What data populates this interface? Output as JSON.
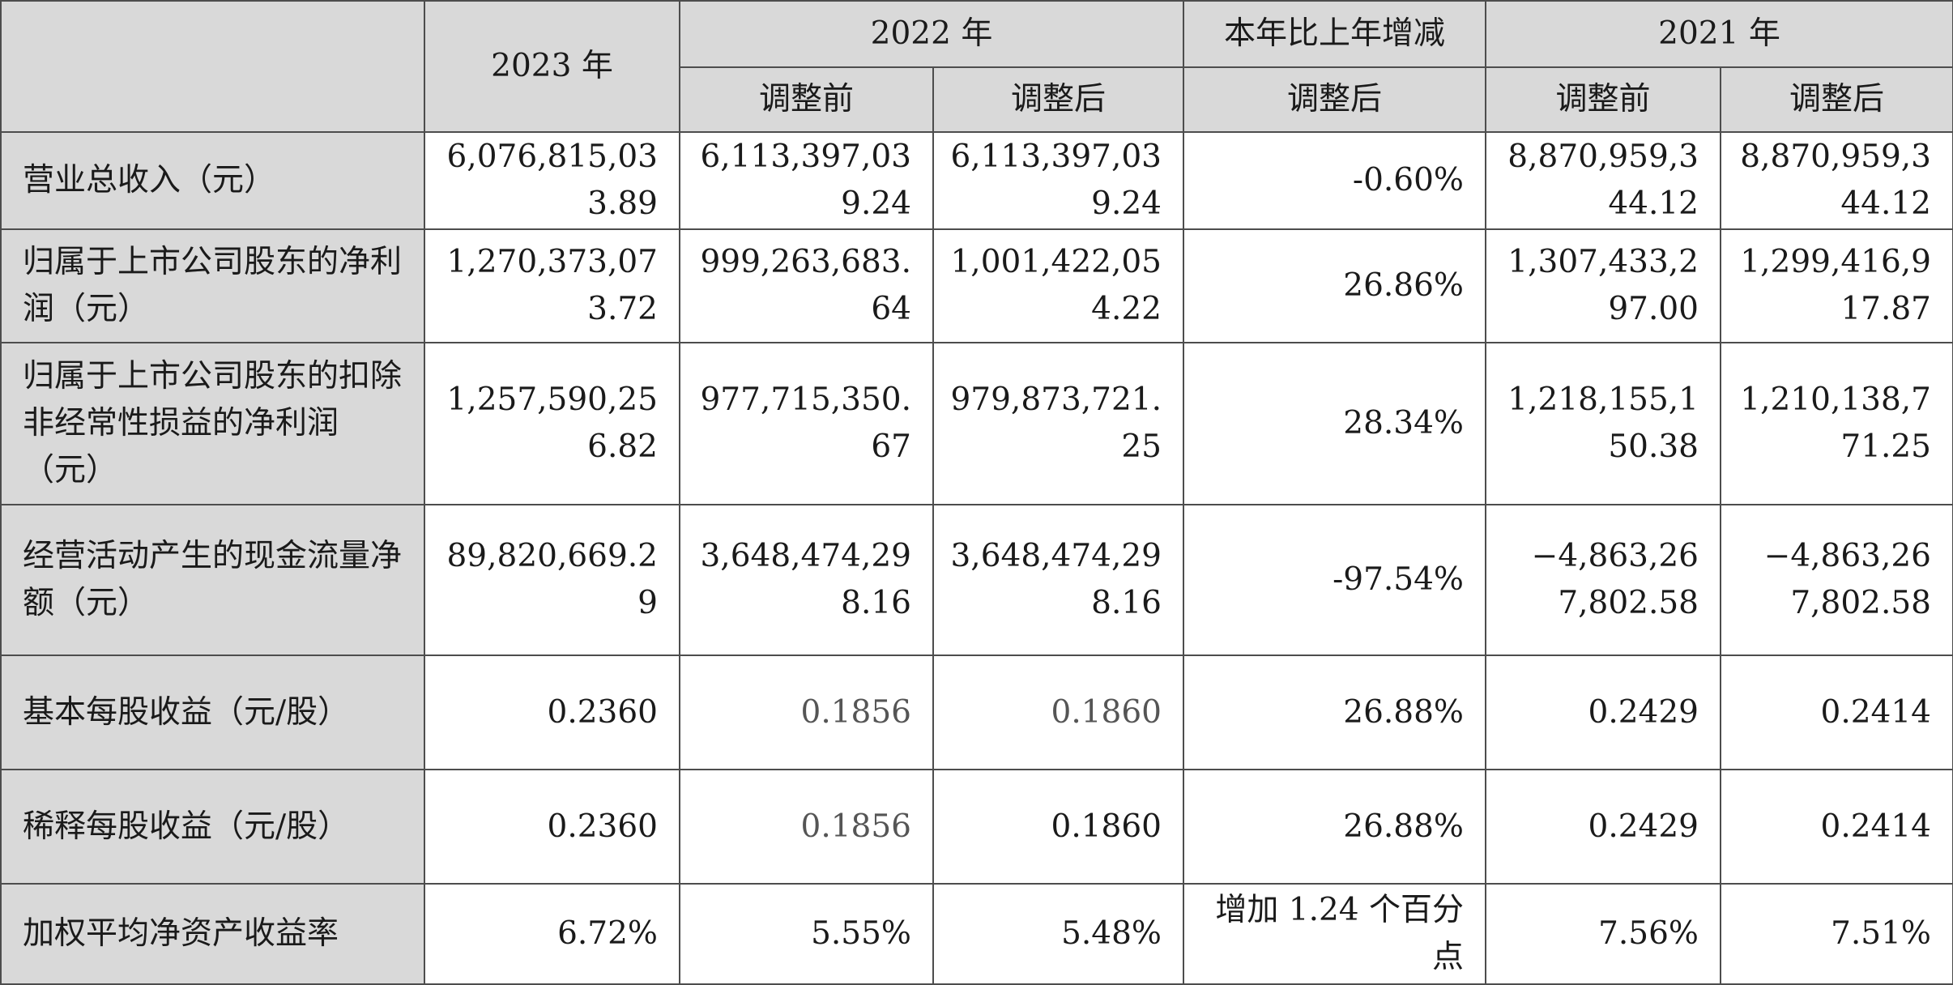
{
  "headers": {
    "y2023": "2023 年",
    "y2022": "2022 年",
    "yoy": "本年比上年增减",
    "y2021": "2021 年",
    "before": "调整前",
    "after": "调整后"
  },
  "rows": [
    {
      "label": "营业总收入（元）",
      "v2023": "6,076,815,033.89",
      "v2022_before": "6,113,397,039.24",
      "v2022_after": "6,113,397,039.24",
      "yoy": "-0.60%",
      "v2021_before": "8,870,959,344.12",
      "v2021_after": "8,870,959,344.12"
    },
    {
      "label": "归属于上市公司股东的净利润（元）",
      "v2023": "1,270,373,073.72",
      "v2022_before": "999,263,683.64",
      "v2022_after": "1,001,422,054.22",
      "yoy": "26.86%",
      "v2021_before": "1,307,433,297.00",
      "v2021_after": "1,299,416,917.87"
    },
    {
      "label": "归属于上市公司股东的扣除非经常性损益的净利润（元）",
      "v2023": "1,257,590,256.82",
      "v2022_before": "977,715,350.67",
      "v2022_after": "979,873,721.25",
      "yoy": "28.34%",
      "v2021_before": "1,218,155,150.38",
      "v2021_after": "1,210,138,771.25"
    },
    {
      "label": "经营活动产生的现金流量净额（元）",
      "v2023": "89,820,669.29",
      "v2022_before": "3,648,474,298.16",
      "v2022_after": "3,648,474,298.16",
      "yoy": "-97.54%",
      "v2021_before": "−4,863,267,802.58",
      "v2021_after": "−4,863,267,802.58"
    },
    {
      "label": "基本每股收益（元/股）",
      "v2023": "0.2360",
      "v2022_before": "0.1856",
      "v2022_after": "0.1860",
      "yoy": "26.88%",
      "v2021_before": "0.2429",
      "v2021_after": "0.2414"
    },
    {
      "label": "稀释每股收益（元/股）",
      "v2023": "0.2360",
      "v2022_before": "0.1856",
      "v2022_after": "0.1860",
      "yoy": "26.88%",
      "v2021_before": "0.2429",
      "v2021_after": "0.2414"
    },
    {
      "label": "加权平均净资产收益率",
      "v2023": "6.72%",
      "v2022_before": "5.55%",
      "v2022_after": "5.48%",
      "yoy": "增加 1.24 个百分点",
      "v2021_before": "7.56%",
      "v2021_after": "7.51%"
    }
  ]
}
